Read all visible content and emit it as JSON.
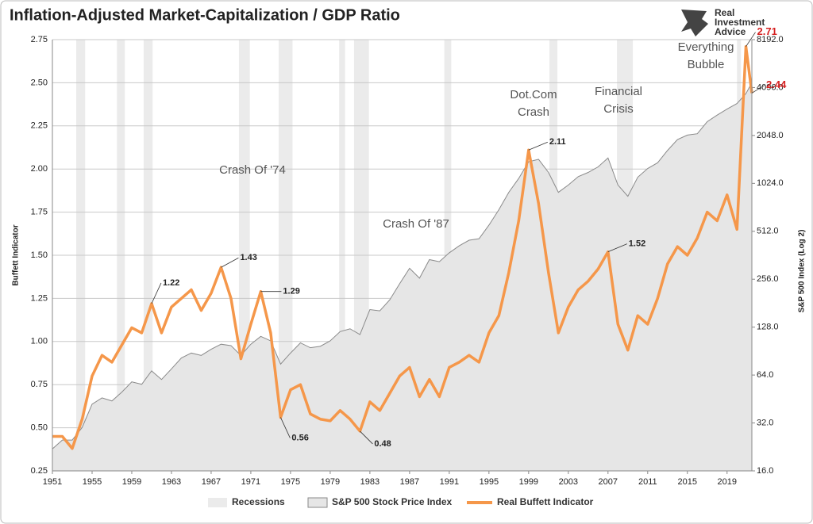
{
  "chart_data": {
    "type": "line",
    "title": "Inflation-Adjusted Market-Capitalization / GDP Ratio",
    "logo_text": [
      "Real",
      "Investment",
      "Advice"
    ],
    "y_label": "Buffett Indicator",
    "y2_label": "S&P 500 Index (Log 2)",
    "xlim": [
      1951,
      2021.5
    ],
    "xticks": [
      1951,
      1955,
      1959,
      1963,
      1967,
      1971,
      1975,
      1979,
      1983,
      1987,
      1991,
      1995,
      1999,
      2003,
      2007,
      2011,
      2015,
      2019
    ],
    "ylim": [
      0.25,
      2.75
    ],
    "yticks": [
      0.25,
      {
        "value": 0.5,
        "label": "0.50"
      },
      0.75,
      {
        "value": 1,
        "label": "1.00"
      },
      1.25,
      {
        "value": 1.5,
        "label": "1.50"
      },
      1.75,
      {
        "value": 2,
        "label": "2.00"
      },
      2.25,
      {
        "value": 2.5,
        "label": "2.50"
      },
      2.75
    ],
    "y2lim": [
      16,
      8192
    ],
    "y2log": 2,
    "y2ticks": [
      {
        "value": 16,
        "label": "16.0"
      },
      {
        "value": 32,
        "label": "32.0"
      },
      {
        "value": 64,
        "label": "64.0"
      },
      {
        "value": 128,
        "label": "128.0"
      },
      {
        "value": 256,
        "label": "256.0"
      },
      {
        "value": 512,
        "label": "512.0"
      },
      {
        "value": 1024,
        "label": "1024.0"
      },
      {
        "value": 2048,
        "label": "2048.0"
      },
      {
        "value": 4096,
        "label": "4096.0"
      },
      {
        "value": 8192,
        "label": "8192.0"
      }
    ],
    "grid": true,
    "legend": "bottom",
    "recessions": {
      "name": "Recessions",
      "color": "#ebebeb",
      "periods": [
        [
          1953.4,
          1954.3
        ],
        [
          1957.5,
          1958.3
        ],
        [
          1960.2,
          1961.1
        ],
        [
          1969.8,
          1970.9
        ],
        [
          1973.8,
          1975.2
        ],
        [
          1979.9,
          1980.5
        ],
        [
          1981.4,
          1982.9
        ],
        [
          1990.5,
          1991.2
        ],
        [
          2001.1,
          2001.9
        ],
        [
          2007.9,
          2009.5
        ],
        [
          2020.0,
          2020.4
        ]
      ]
    },
    "x": [
      1951,
      1952,
      1953,
      1954,
      1955,
      1956,
      1957,
      1958,
      1959,
      1960,
      1961,
      1962,
      1963,
      1964,
      1965,
      1966,
      1967,
      1968,
      1969,
      1970,
      1971,
      1972,
      1973,
      1974,
      1975,
      1976,
      1977,
      1978,
      1979,
      1980,
      1981,
      1982,
      1983,
      1984,
      1985,
      1986,
      1987,
      1988,
      1989,
      1990,
      1991,
      1992,
      1993,
      1994,
      1995,
      1996,
      1997,
      1998,
      1999,
      2000,
      2001,
      2002,
      2003,
      2004,
      2005,
      2006,
      2007,
      2008,
      2009,
      2010,
      2011,
      2012,
      2013,
      2014,
      2015,
      2016,
      2017,
      2018,
      2019,
      2020,
      2020.9,
      2021.5
    ],
    "series": [
      {
        "name": "Real Buffett Indicator",
        "color": "#f5974a",
        "axis": "y",
        "values": [
          0.45,
          0.45,
          0.38,
          0.55,
          0.8,
          0.92,
          0.88,
          0.98,
          1.08,
          1.05,
          1.22,
          1.05,
          1.2,
          1.25,
          1.3,
          1.18,
          1.28,
          1.43,
          1.25,
          0.9,
          1.1,
          1.29,
          1.05,
          0.56,
          0.72,
          0.75,
          0.58,
          0.55,
          0.54,
          0.6,
          0.55,
          0.48,
          0.65,
          0.6,
          0.7,
          0.8,
          0.85,
          0.68,
          0.78,
          0.68,
          0.85,
          0.88,
          0.92,
          0.88,
          1.05,
          1.15,
          1.4,
          1.7,
          2.11,
          1.8,
          1.4,
          1.05,
          1.2,
          1.3,
          1.35,
          1.42,
          1.52,
          1.1,
          0.95,
          1.15,
          1.1,
          1.25,
          1.45,
          1.55,
          1.5,
          1.6,
          1.75,
          1.7,
          1.85,
          1.65,
          2.71,
          2.44
        ]
      },
      {
        "name": "S&P 500 Stock Price Index",
        "color": "#e6e6e6",
        "axis": "y2",
        "values": [
          22,
          25,
          25,
          30,
          42,
          46,
          44,
          50,
          58,
          56,
          68,
          60,
          70,
          82,
          88,
          85,
          93,
          100,
          98,
          85,
          100,
          112,
          105,
          75,
          88,
          102,
          95,
          97,
          105,
          120,
          125,
          115,
          165,
          162,
          190,
          240,
          300,
          260,
          340,
          330,
          375,
          415,
          450,
          460,
          560,
          700,
          900,
          1100,
          1400,
          1450,
          1200,
          900,
          1000,
          1130,
          1200,
          1300,
          1480,
          1000,
          850,
          1120,
          1270,
          1380,
          1650,
          1930,
          2060,
          2100,
          2500,
          2750,
          3000,
          3250,
          3750,
          4400
        ]
      }
    ],
    "point_labels": [
      {
        "x": 1961,
        "value": 1.22
      },
      {
        "x": 1968,
        "value": 1.43
      },
      {
        "x": 1972,
        "value": 1.29
      },
      {
        "x": 1974,
        "value": 0.56
      },
      {
        "x": 1982,
        "value": 0.48
      },
      {
        "x": 1999,
        "value": 2.11
      },
      {
        "x": 2007,
        "value": 1.52
      },
      {
        "x": 2020.9,
        "value": 2.71
      },
      {
        "x": 2021.5,
        "value": 2.44
      }
    ],
    "annotations": [
      [
        "Crash Of '74"
      ],
      [
        "Crash Of '87"
      ],
      [
        "Dot.Com",
        "Crash"
      ],
      [
        "Financial",
        "Crisis"
      ],
      [
        "Everything",
        "Bubble"
      ]
    ]
  }
}
